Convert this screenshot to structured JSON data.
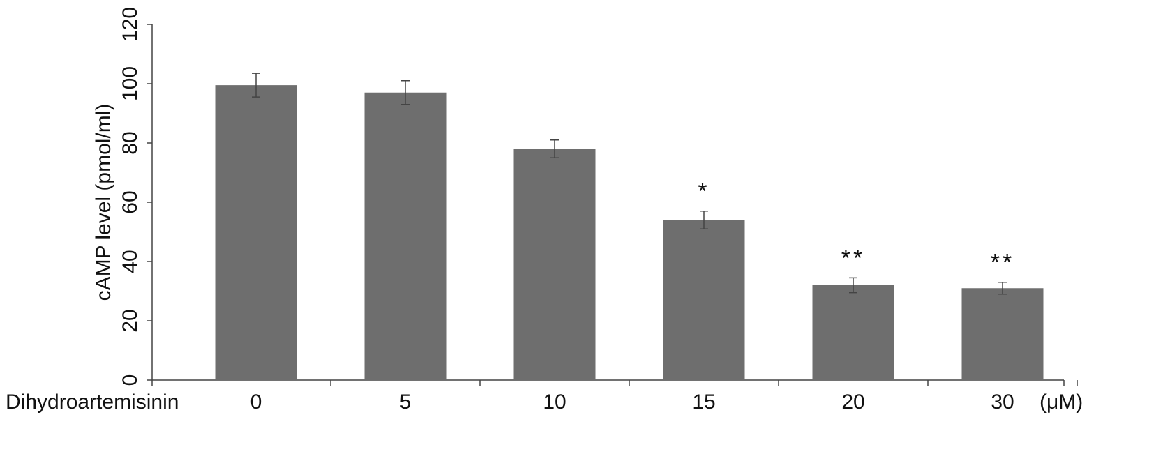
{
  "chart_data": {
    "type": "bar",
    "y_label": "cAMP level (pmol/ml)",
    "x_label": "Dihydroartemisinin",
    "x_unit": "(μM)",
    "categories": [
      "0",
      "5",
      "10",
      "15",
      "20",
      "30"
    ],
    "values": [
      99.5,
      97,
      78,
      54,
      32,
      31
    ],
    "errors": [
      4,
      4,
      3,
      3,
      2.5,
      2
    ],
    "significance": [
      null,
      null,
      null,
      "*",
      "**",
      "**"
    ],
    "color": "#6e6e6e",
    "ylim": [
      0,
      120
    ],
    "yticks": [
      0,
      20,
      40,
      60,
      80,
      100,
      120
    ],
    "grid": false
  }
}
